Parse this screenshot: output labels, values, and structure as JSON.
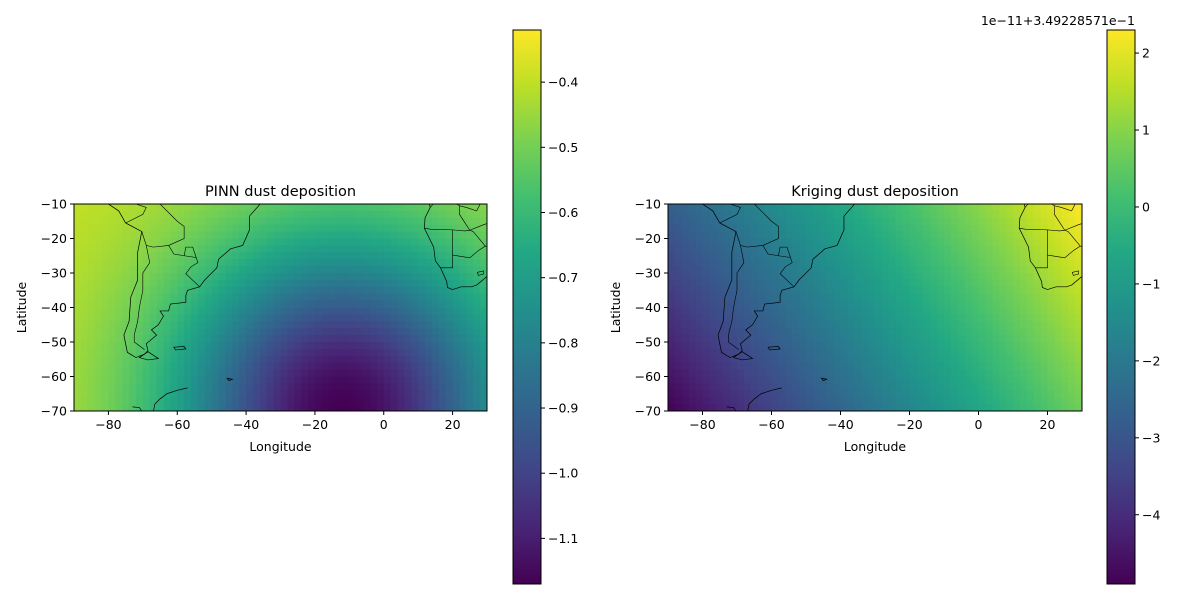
{
  "chart_data": [
    {
      "type": "heatmap",
      "title": "PINN dust deposition",
      "xlabel": "Longitude",
      "ylabel": "Latitude",
      "xlim": [
        -90,
        30
      ],
      "ylim": [
        -70,
        -10
      ],
      "x_ticks": [
        -80,
        -60,
        -40,
        -20,
        0,
        20
      ],
      "y_ticks": [
        -10,
        -20,
        -30,
        -40,
        -50,
        -60,
        -70
      ],
      "x_tick_labels": [
        "−80",
        "−60",
        "−40",
        "−20",
        "0",
        "20"
      ],
      "y_tick_labels": [
        "−10",
        "−20",
        "−30",
        "−40",
        "−50",
        "−60",
        "−70"
      ],
      "colormap": "viridis",
      "grid": false,
      "overlay": "coastlines",
      "colorbar": {
        "vmin": -1.17,
        "vmax": -0.32,
        "ticks": [
          -0.4,
          -0.5,
          -0.6,
          -0.7,
          -0.8,
          -0.9,
          -1.0,
          -1.1
        ],
        "tick_labels": [
          "−0.4",
          "−0.5",
          "−0.6",
          "−0.7",
          "−0.8",
          "−0.9",
          "−1.0",
          "−1.1"
        ],
        "offset_label": ""
      },
      "field": {
        "description_values": {
          "min_at": [
            -12,
            -70
          ],
          "max_at": [
            30,
            -10
          ]
        },
        "min": -1.17,
        "max": -0.32
      }
    },
    {
      "type": "heatmap",
      "title": "Kriging dust deposition",
      "xlabel": "Longitude",
      "ylabel": "Latitude",
      "xlim": [
        -90,
        30
      ],
      "ylim": [
        -70,
        -10
      ],
      "x_ticks": [
        -80,
        -60,
        -40,
        -20,
        0,
        20
      ],
      "y_ticks": [
        -10,
        -20,
        -30,
        -40,
        -50,
        -60,
        -70
      ],
      "x_tick_labels": [
        "−80",
        "−60",
        "−40",
        "−20",
        "0",
        "20"
      ],
      "y_tick_labels": [
        "−10",
        "−20",
        "−30",
        "−40",
        "−50",
        "−60",
        "−70"
      ],
      "colormap": "viridis",
      "grid": false,
      "overlay": "coastlines",
      "colorbar": {
        "vmin": -4.9,
        "vmax": 2.3,
        "ticks": [
          2,
          1,
          0,
          -1,
          -2,
          -3,
          -4
        ],
        "tick_labels": [
          "2",
          "1",
          "0",
          "−1",
          "−2",
          "−3",
          "−4"
        ],
        "offset_label": "1e−11+3.49228571e−1"
      },
      "field": {
        "min": -4.9,
        "max": 2.3
      }
    }
  ],
  "colors": {
    "viridis": [
      "#440154",
      "#482475",
      "#414487",
      "#355f8d",
      "#2a788e",
      "#21918c",
      "#22a884",
      "#44bf70",
      "#7ad151",
      "#bddf26",
      "#fde725"
    ],
    "coastline": "#000000"
  }
}
